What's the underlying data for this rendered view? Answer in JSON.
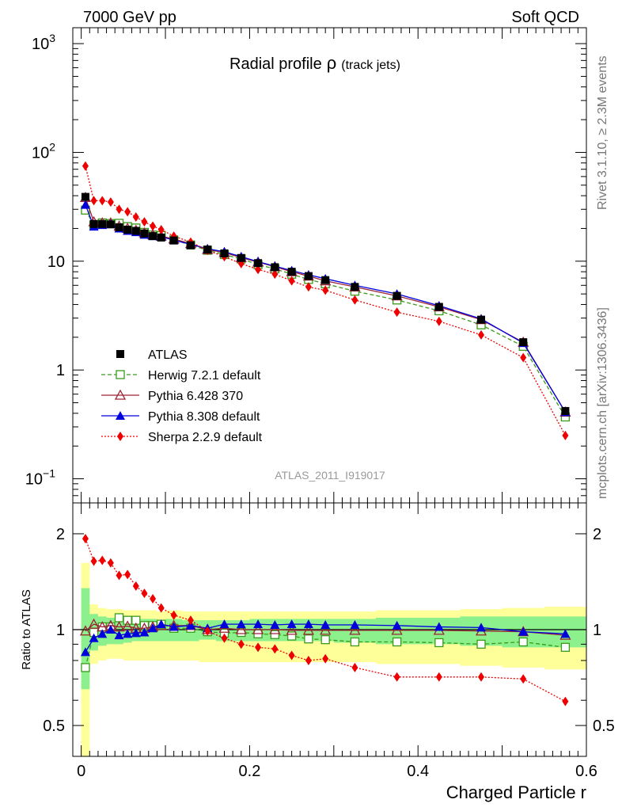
{
  "header": {
    "energy_label": "7000 GeV pp",
    "category_label": "Soft QCD"
  },
  "side_labels": {
    "rivet": "Rivet 3.1.10, ≥ 2.3M events",
    "mcplots": "mcplots.cern.ch [arXiv:1306.3436]"
  },
  "analysis_label": "ATLAS_2011_I919017",
  "colors": {
    "atlas": "#000000",
    "herwig": "#3a9a1a",
    "pythia6": "#9b2335",
    "pythia8": "#0000dd",
    "sherpa": "#ee0000",
    "band_inner": "#8cf08c",
    "band_outer": "#ffff99"
  },
  "chart_data": [
    {
      "type": "line",
      "panel": "main",
      "title_main": "Radial profile",
      "title_symbol": "ρ",
      "title_sub": "(track jets)",
      "yscale": "log",
      "ylim": [
        0.06,
        1400
      ],
      "xlim": [
        -0.01,
        0.6
      ],
      "ytick_labels": [
        {
          "mantissa": "10",
          "exp": "3"
        },
        {
          "mantissa": "10",
          "exp": "2"
        },
        {
          "mantissa": "10",
          "exp": ""
        },
        {
          "mantissa": "1",
          "exp": ""
        },
        {
          "mantissa": "10",
          "exp": "−1"
        }
      ],
      "ytick_values": [
        1000,
        100,
        10,
        1,
        0.1
      ],
      "legend_position": "lower-left",
      "x": [
        0.005,
        0.015,
        0.025,
        0.035,
        0.045,
        0.055,
        0.065,
        0.075,
        0.085,
        0.095,
        0.11,
        0.13,
        0.15,
        0.17,
        0.19,
        0.21,
        0.23,
        0.25,
        0.27,
        0.29,
        0.325,
        0.375,
        0.425,
        0.475,
        0.525,
        0.575
      ],
      "series": [
        {
          "name": "ATLAS",
          "key": "atlas",
          "marker": "square-filled",
          "line": "none",
          "values": [
            39,
            22,
            22,
            21.8,
            20.5,
            19.5,
            19,
            18,
            17,
            16.5,
            15.5,
            14,
            12.8,
            11.8,
            10.7,
            9.6,
            8.8,
            8,
            7.3,
            6.7,
            5.8,
            4.8,
            3.8,
            2.9,
            1.8,
            0.42
          ]
        },
        {
          "name": "Herwig 7.2.1 default",
          "key": "herwig",
          "marker": "square-open",
          "line": "dashed",
          "values": [
            29.5,
            21.5,
            22.5,
            22.2,
            22.3,
            20.8,
            20.2,
            18.4,
            17.4,
            17.2,
            15.7,
            14.1,
            12.6,
            11.5,
            10.5,
            9.3,
            8.5,
            7.6,
            6.8,
            6.2,
            5.3,
            4.4,
            3.5,
            2.6,
            1.65,
            0.37
          ]
        },
        {
          "name": "Pythia 6.428 370",
          "key": "pythia6",
          "marker": "triangle-open",
          "line": "solid",
          "values": [
            38.5,
            23,
            22.5,
            22.5,
            21,
            20,
            19.2,
            18.2,
            17.5,
            17,
            16,
            14.5,
            12.8,
            12,
            10.8,
            9.8,
            8.9,
            8,
            7.3,
            6.6,
            5.8,
            4.8,
            3.8,
            2.9,
            1.8,
            0.41
          ]
        },
        {
          "name": "Pythia 8.308 default",
          "key": "pythia8",
          "marker": "triangle-filled",
          "line": "solid",
          "values": [
            33,
            20.8,
            21.5,
            22,
            20,
            19,
            18.5,
            17.5,
            17,
            16.8,
            15.6,
            14.3,
            13,
            12.2,
            11,
            9.9,
            9,
            8.2,
            7.5,
            6.9,
            6,
            5,
            3.9,
            2.95,
            1.77,
            0.41
          ]
        },
        {
          "name": "Sherpa 2.2.9 default",
          "key": "sherpa",
          "marker": "diamond-filled",
          "line": "dotted",
          "values": [
            75,
            36,
            36,
            35,
            30,
            28.5,
            25.5,
            23,
            21,
            19.5,
            17,
            15,
            12.6,
            11,
            9.5,
            8.4,
            7.6,
            6.6,
            5.8,
            5.4,
            4.4,
            3.4,
            2.8,
            2.1,
            1.3,
            0.25
          ]
        }
      ]
    },
    {
      "type": "line",
      "panel": "ratio",
      "ylabel": "Ratio to ATLAS",
      "xlabel": "Charged Particle r",
      "yscale": "log",
      "ylim": [
        0.4,
        2.5
      ],
      "xlim": [
        -0.01,
        0.6
      ],
      "ytick_labels": [
        "2",
        "1",
        "0.5"
      ],
      "ytick_values": [
        2,
        1,
        0.5
      ],
      "xtick_labels": [
        "0",
        "0.2",
        "0.4",
        "0.6"
      ],
      "xtick_values": [
        0,
        0.2,
        0.4,
        0.6
      ],
      "x": [
        0.005,
        0.015,
        0.025,
        0.035,
        0.045,
        0.055,
        0.065,
        0.075,
        0.085,
        0.095,
        0.11,
        0.13,
        0.15,
        0.17,
        0.19,
        0.21,
        0.23,
        0.25,
        0.27,
        0.29,
        0.325,
        0.375,
        0.425,
        0.475,
        0.525,
        0.575
      ],
      "series": [
        {
          "name": "Herwig 7.2.1 default",
          "key": "herwig",
          "values": [
            0.76,
            0.98,
            1.02,
            1.02,
            1.09,
            1.07,
            1.07,
            1.03,
            1.03,
            1.04,
            1.01,
            1.01,
            0.985,
            0.975,
            0.98,
            0.97,
            0.965,
            0.955,
            0.935,
            0.93,
            0.915,
            0.915,
            0.91,
            0.9,
            0.915,
            0.88
          ]
        },
        {
          "name": "Pythia 6.428 370",
          "key": "pythia6",
          "values": [
            0.99,
            1.04,
            1.02,
            1.03,
            1.02,
            1.025,
            1.01,
            1.01,
            1.02,
            1.03,
            1.03,
            1.03,
            1.0,
            1.01,
            1.0,
            1.0,
            1.0,
            0.995,
            0.995,
            0.995,
            0.995,
            0.995,
            0.995,
            0.99,
            0.985,
            0.96
          ]
        },
        {
          "name": "Pythia 8.308 default",
          "key": "pythia8",
          "values": [
            0.85,
            0.94,
            0.97,
            1.0,
            0.96,
            0.97,
            0.975,
            0.98,
            1.01,
            1.04,
            1.02,
            1.03,
            1.01,
            1.04,
            1.04,
            1.04,
            1.035,
            1.04,
            1.04,
            1.035,
            1.035,
            1.03,
            1.02,
            1.015,
            0.985,
            0.97
          ]
        },
        {
          "name": "Sherpa 2.2.9 default",
          "key": "sherpa",
          "values": [
            1.93,
            1.64,
            1.65,
            1.62,
            1.48,
            1.49,
            1.37,
            1.3,
            1.25,
            1.17,
            1.11,
            1.07,
            0.99,
            0.94,
            0.9,
            0.88,
            0.87,
            0.83,
            0.8,
            0.81,
            0.76,
            0.71,
            0.71,
            0.71,
            0.7,
            0.595
          ]
        }
      ],
      "bands": {
        "edges": [
          0,
          0.01,
          0.02,
          0.03,
          0.04,
          0.05,
          0.06,
          0.07,
          0.08,
          0.09,
          0.1,
          0.12,
          0.14,
          0.16,
          0.18,
          0.2,
          0.22,
          0.24,
          0.26,
          0.28,
          0.3,
          0.35,
          0.4,
          0.45,
          0.5,
          0.55,
          0.6
        ],
        "inner_lo": [
          0.65,
          0.86,
          0.89,
          0.9,
          0.9,
          0.91,
          0.92,
          0.92,
          0.92,
          0.92,
          0.92,
          0.92,
          0.93,
          0.92,
          0.92,
          0.92,
          0.92,
          0.92,
          0.92,
          0.92,
          0.91,
          0.9,
          0.9,
          0.89,
          0.88,
          0.88
        ],
        "inner_hi": [
          1.35,
          1.12,
          1.1,
          1.09,
          1.09,
          1.08,
          1.08,
          1.08,
          1.08,
          1.07,
          1.08,
          1.07,
          1.07,
          1.07,
          1.07,
          1.08,
          1.08,
          1.08,
          1.08,
          1.08,
          1.08,
          1.09,
          1.09,
          1.1,
          1.1,
          1.1
        ],
        "outer_lo": [
          0.4,
          0.78,
          0.8,
          0.81,
          0.81,
          0.8,
          0.8,
          0.8,
          0.8,
          0.8,
          0.8,
          0.8,
          0.79,
          0.79,
          0.79,
          0.79,
          0.79,
          0.79,
          0.79,
          0.79,
          0.79,
          0.78,
          0.78,
          0.77,
          0.76,
          0.75
        ],
        "outer_hi": [
          1.62,
          1.2,
          1.17,
          1.16,
          1.16,
          1.15,
          1.15,
          1.15,
          1.15,
          1.14,
          1.15,
          1.14,
          1.14,
          1.14,
          1.14,
          1.14,
          1.14,
          1.14,
          1.14,
          1.14,
          1.14,
          1.15,
          1.15,
          1.16,
          1.17,
          1.18
        ]
      }
    }
  ]
}
